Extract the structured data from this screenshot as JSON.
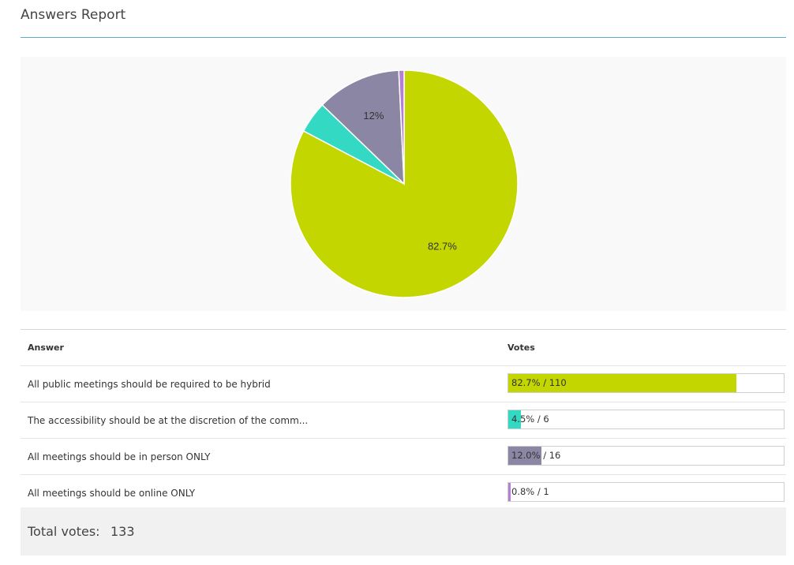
{
  "report": {
    "title": "Answers Report"
  },
  "table": {
    "answer_header": "Answer",
    "votes_header": "Votes",
    "rows": [
      {
        "answer": "All public meetings should be required to be hybrid",
        "percent": 82.7,
        "votes_text": "82.7% / 110",
        "color": "#c3d600"
      },
      {
        "answer": "The accessibility should be at the discretion of the comm...",
        "percent": 4.5,
        "votes_text": "4.5% / 6",
        "color": "#33d9c3"
      },
      {
        "answer": "All meetings should be in person ONLY",
        "percent": 12.0,
        "votes_text": "12.0% / 16",
        "color": "#8a86a3"
      },
      {
        "answer": "All meetings should be online ONLY",
        "percent": 0.8,
        "votes_text": "0.8% / 1",
        "color": "#b57fd8"
      }
    ]
  },
  "total": {
    "label": "Total votes:",
    "value": "133"
  },
  "chart_data": {
    "type": "pie",
    "categories": [
      "All public meetings should be required to be hybrid",
      "The accessibility should be at the discretion of the comm...",
      "All meetings should be in person ONLY",
      "All meetings should be online ONLY"
    ],
    "values": [
      110,
      6,
      16,
      1
    ],
    "percent_labels": [
      "82.7%",
      "",
      "12%",
      ""
    ],
    "colors": [
      "#c3d600",
      "#33d9c3",
      "#8a86a3",
      "#b57fd8"
    ],
    "start_angle_deg": 0,
    "direction": "clockwise"
  }
}
